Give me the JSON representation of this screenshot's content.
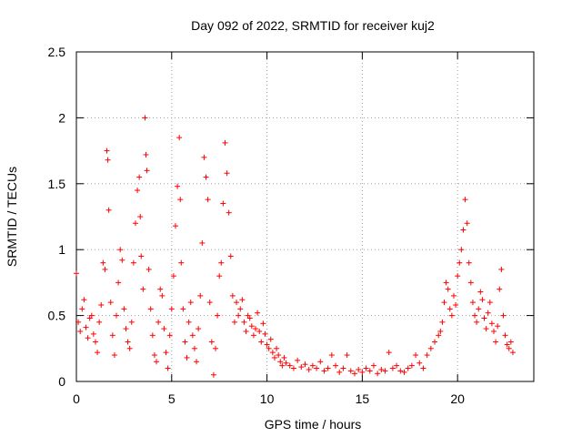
{
  "chart_data": {
    "type": "scatter",
    "title": "Day 092 of 2022, SRMTID for receiver kuj2",
    "xlabel": "GPS time / hours",
    "ylabel": "SRMTID / TECUs",
    "xlim": [
      0,
      24
    ],
    "ylim": [
      0,
      2.5
    ],
    "xticks": [
      0,
      5,
      10,
      15,
      20
    ],
    "xtick_labels": [
      "0",
      "5",
      "10",
      "15",
      "20"
    ],
    "yticks": [
      0,
      0.5,
      1,
      1.5,
      2,
      2.5
    ],
    "ytick_labels": [
      "0",
      "0.5",
      "1",
      "1.5",
      "2",
      "2.5"
    ],
    "grid": true,
    "marker": "+",
    "marker_color": "#ff0000",
    "series": [
      {
        "name": "SRMTID",
        "x": [
          0.0,
          0.1,
          0.2,
          0.3,
          0.4,
          0.5,
          0.6,
          0.7,
          0.8,
          0.9,
          1.0,
          1.1,
          1.2,
          1.3,
          1.4,
          1.5,
          1.6,
          1.65,
          1.7,
          1.8,
          1.9,
          2.0,
          2.1,
          2.2,
          2.3,
          2.4,
          2.5,
          2.6,
          2.7,
          2.8,
          2.9,
          3.0,
          3.1,
          3.2,
          3.3,
          3.35,
          3.4,
          3.5,
          3.6,
          3.65,
          3.7,
          3.8,
          3.9,
          4.0,
          4.1,
          4.2,
          4.3,
          4.4,
          4.5,
          4.6,
          4.7,
          4.8,
          4.9,
          5.0,
          5.1,
          5.2,
          5.3,
          5.4,
          5.45,
          5.5,
          5.6,
          5.7,
          5.8,
          5.9,
          6.0,
          6.1,
          6.2,
          6.3,
          6.4,
          6.5,
          6.6,
          6.7,
          6.8,
          6.9,
          7.0,
          7.1,
          7.2,
          7.3,
          7.4,
          7.5,
          7.6,
          7.7,
          7.8,
          7.9,
          8.0,
          8.1,
          8.2,
          8.3,
          8.4,
          8.5,
          8.6,
          8.7,
          8.8,
          8.9,
          9.0,
          9.1,
          9.2,
          9.3,
          9.4,
          9.5,
          9.6,
          9.7,
          9.8,
          9.9,
          10.0,
          10.1,
          10.2,
          10.3,
          10.4,
          10.5,
          10.6,
          10.7,
          10.8,
          10.9,
          11.0,
          11.2,
          11.4,
          11.6,
          11.8,
          12.0,
          12.2,
          12.4,
          12.6,
          12.8,
          13.0,
          13.2,
          13.4,
          13.6,
          13.8,
          14.0,
          14.2,
          14.4,
          14.6,
          14.8,
          15.0,
          15.2,
          15.4,
          15.6,
          15.8,
          16.0,
          16.2,
          16.4,
          16.6,
          16.8,
          17.0,
          17.2,
          17.4,
          17.6,
          17.8,
          18.0,
          18.2,
          18.4,
          18.6,
          18.8,
          19.0,
          19.1,
          19.2,
          19.3,
          19.4,
          19.5,
          19.6,
          19.7,
          19.8,
          19.9,
          20.0,
          20.1,
          20.2,
          20.3,
          20.4,
          20.5,
          20.6,
          20.7,
          20.8,
          20.9,
          21.0,
          21.1,
          21.2,
          21.3,
          21.4,
          21.5,
          21.6,
          21.7,
          21.8,
          21.9,
          22.0,
          22.1,
          22.2,
          22.3,
          22.4,
          22.5,
          22.6,
          22.7,
          22.8,
          22.9
        ],
        "y": [
          0.82,
          0.45,
          0.38,
          0.55,
          0.62,
          0.41,
          0.33,
          0.48,
          0.5,
          0.36,
          0.3,
          0.22,
          0.45,
          0.58,
          0.9,
          0.85,
          1.75,
          1.68,
          1.3,
          0.6,
          0.35,
          0.2,
          0.5,
          0.75,
          1.0,
          0.92,
          0.55,
          0.4,
          0.3,
          0.25,
          0.45,
          0.9,
          1.2,
          1.45,
          1.55,
          1.25,
          0.95,
          0.7,
          2.0,
          1.72,
          1.6,
          0.85,
          0.55,
          0.35,
          0.2,
          0.15,
          0.45,
          0.7,
          0.65,
          0.4,
          0.22,
          0.1,
          0.35,
          0.55,
          0.8,
          1.18,
          1.48,
          1.85,
          1.38,
          0.9,
          0.55,
          0.3,
          0.18,
          0.45,
          0.6,
          0.35,
          0.25,
          0.15,
          0.4,
          0.65,
          1.05,
          1.7,
          1.55,
          1.38,
          0.6,
          0.3,
          0.05,
          0.25,
          0.5,
          0.8,
          0.9,
          1.35,
          1.81,
          1.58,
          1.28,
          0.95,
          0.65,
          0.45,
          0.6,
          0.5,
          0.55,
          0.62,
          0.45,
          0.38,
          0.5,
          0.48,
          0.42,
          0.35,
          0.4,
          0.52,
          0.38,
          0.3,
          0.44,
          0.36,
          0.28,
          0.25,
          0.32,
          0.22,
          0.18,
          0.25,
          0.2,
          0.15,
          0.12,
          0.18,
          0.14,
          0.12,
          0.1,
          0.16,
          0.11,
          0.13,
          0.09,
          0.12,
          0.1,
          0.15,
          0.08,
          0.1,
          0.2,
          0.12,
          0.07,
          0.1,
          0.2,
          0.08,
          0.06,
          0.09,
          0.07,
          0.1,
          0.08,
          0.12,
          0.06,
          0.09,
          0.08,
          0.22,
          0.1,
          0.12,
          0.08,
          0.07,
          0.1,
          0.12,
          0.2,
          0.14,
          0.1,
          0.2,
          0.25,
          0.3,
          0.35,
          0.38,
          0.45,
          0.6,
          0.75,
          0.7,
          0.55,
          0.5,
          0.65,
          0.58,
          0.8,
          0.9,
          1.0,
          1.15,
          1.38,
          1.2,
          0.9,
          0.75,
          0.6,
          0.5,
          0.45,
          0.55,
          0.68,
          0.62,
          0.48,
          0.4,
          0.52,
          0.6,
          0.44,
          0.38,
          0.3,
          0.42,
          0.7,
          0.85,
          0.5,
          0.35,
          0.28,
          0.25,
          0.3,
          0.22
        ]
      }
    ]
  }
}
